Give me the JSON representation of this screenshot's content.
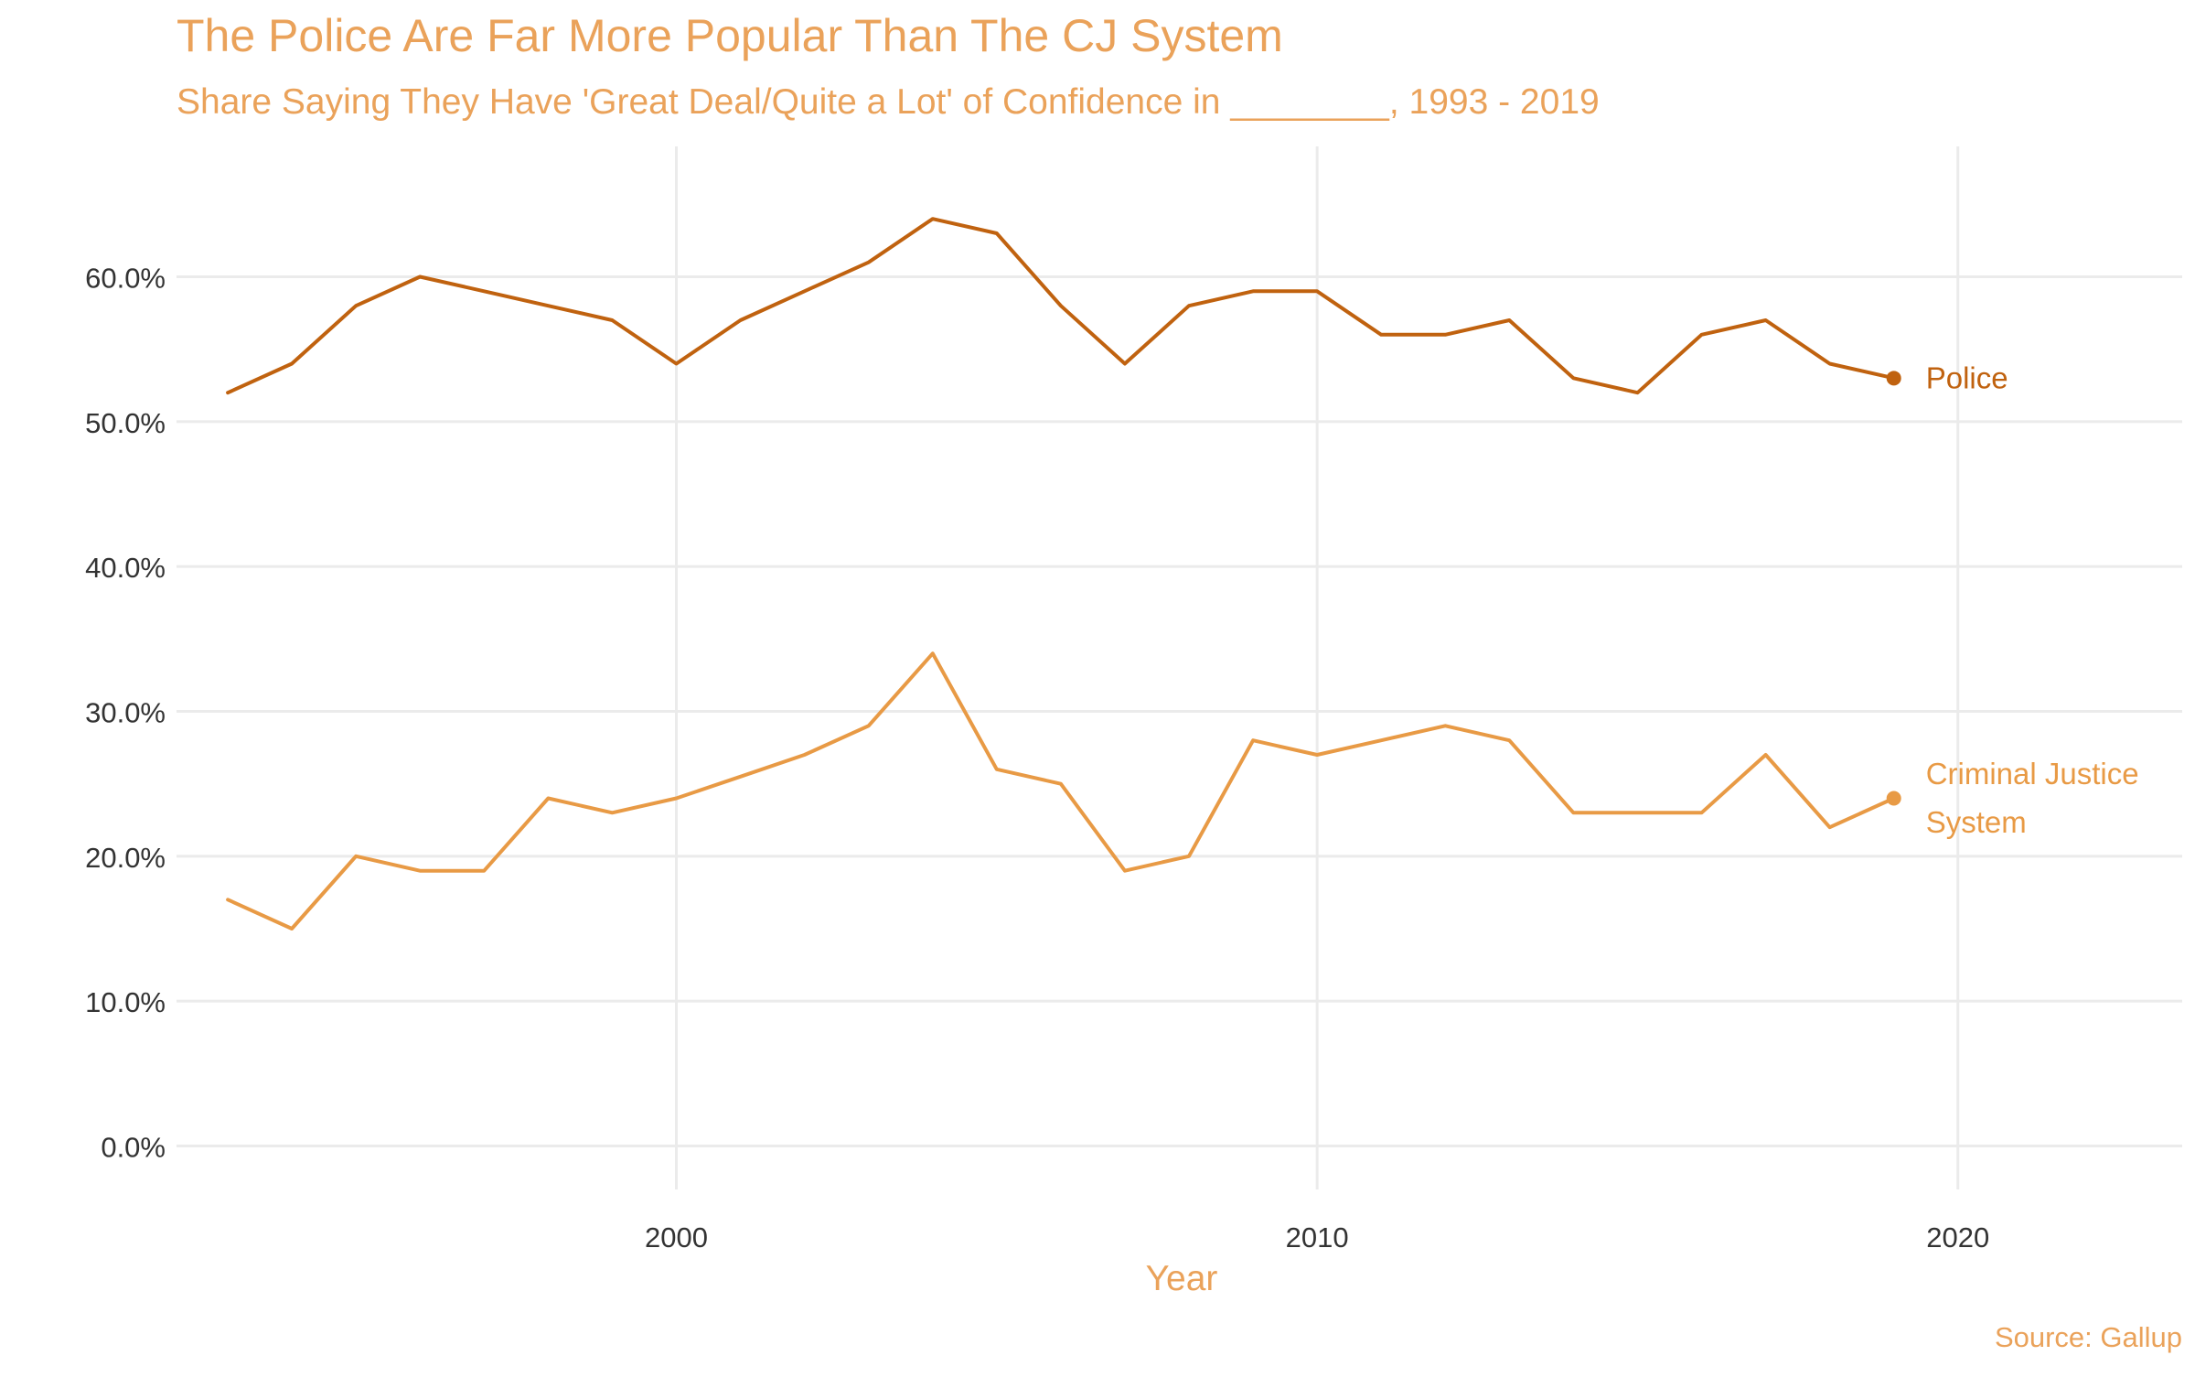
{
  "chart_data": {
    "type": "line",
    "title": "The Police Are Far More Popular Than The CJ System",
    "subtitle": "Share Saying They Have 'Great Deal/Quite a Lot' of Confidence in ________, 1993 - 2019",
    "xlabel": "Year",
    "ylabel": "",
    "caption": "Source: Gallup",
    "xlim": [
      1992.2,
      2023.5
    ],
    "ylim": [
      -3,
      69
    ],
    "x_ticks": [
      2000,
      2010,
      2020
    ],
    "x_tick_labels": [
      "2000",
      "2010",
      "2020"
    ],
    "y_ticks": [
      0,
      10,
      20,
      30,
      40,
      50,
      60
    ],
    "y_tick_labels": [
      "0.0%",
      "10.0%",
      "20.0%",
      "30.0%",
      "40.0%",
      "50.0%",
      "60.0%"
    ],
    "grid": true,
    "legend": "direct labels at line ends",
    "x": [
      1993,
      1994,
      1995,
      1996,
      1997,
      1998,
      1999,
      2000,
      2001,
      2002,
      2003,
      2004,
      2005,
      2006,
      2007,
      2008,
      2009,
      2010,
      2011,
      2012,
      2013,
      2014,
      2015,
      2016,
      2017,
      2018,
      2019
    ],
    "series": [
      {
        "name": "Police",
        "label_lines": [
          "Police"
        ],
        "color": "#c0620f",
        "values": [
          52,
          54,
          58,
          60,
          59,
          58,
          57,
          54,
          57,
          59,
          61,
          64,
          63,
          58,
          54,
          58,
          59,
          59,
          56,
          56,
          57,
          53,
          52,
          56,
          57,
          54,
          53
        ]
      },
      {
        "name": "Criminal Justice System",
        "label_lines": [
          "Criminal Justice",
          "System"
        ],
        "color": "#e89a45",
        "values": [
          17,
          15,
          20,
          19,
          19,
          24,
          23,
          24,
          25.5,
          27,
          29,
          34,
          26,
          25,
          19,
          20,
          28,
          27,
          28,
          29,
          28,
          23,
          23,
          23,
          27,
          22,
          24
        ]
      }
    ],
    "colors": {
      "title": "#eaa25a",
      "axis_text": "#333333",
      "grid": "#ebebeb"
    }
  }
}
